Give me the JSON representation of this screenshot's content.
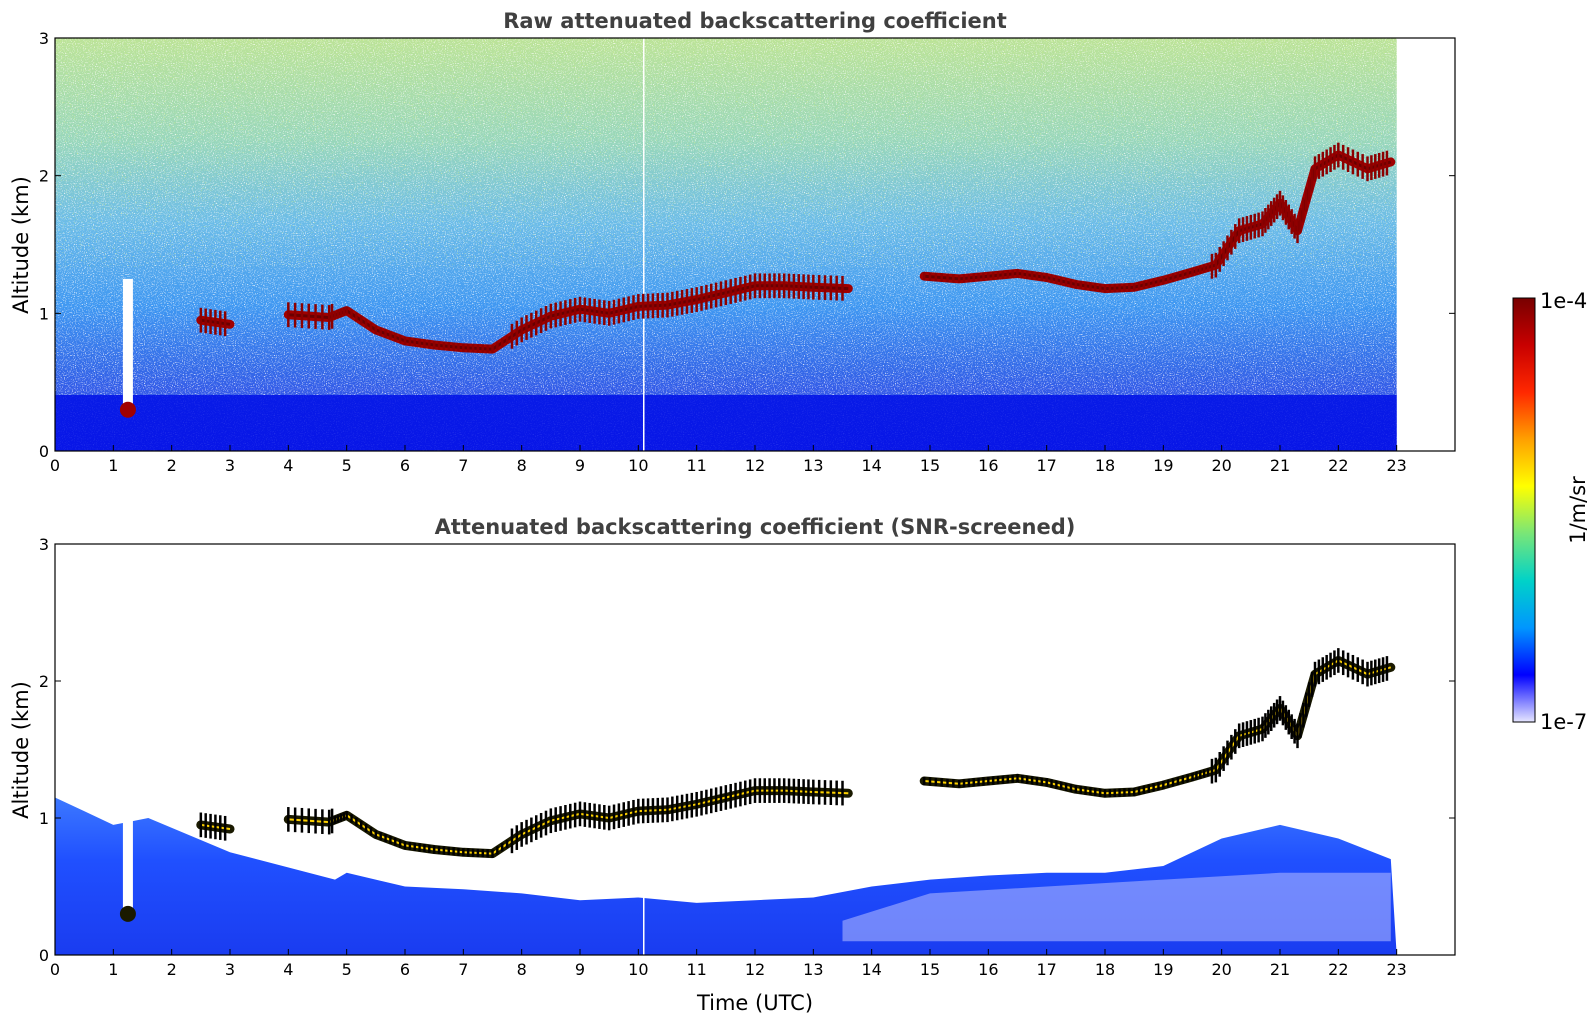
{
  "chart_data": [
    {
      "type": "heatmap",
      "title": "Raw attenuated backscattering coefficient",
      "xlabel": "",
      "ylabel": "Altitude (km)",
      "xlim": [
        0,
        24
      ],
      "ylim": [
        0,
        3
      ],
      "x_ticks": [
        "0",
        "1",
        "2",
        "3",
        "4",
        "5",
        "6",
        "7",
        "8",
        "9",
        "10",
        "11",
        "12",
        "13",
        "14",
        "15",
        "16",
        "17",
        "18",
        "19",
        "20",
        "21",
        "22",
        "23"
      ],
      "y_ticks": [
        "0",
        "1",
        "2",
        "3"
      ],
      "data_time_range": [
        0,
        23
      ],
      "cloud_base_layer": [
        [
          0.3,
          1.12
        ],
        [
          1.6,
          1.0
        ],
        [
          2.5,
          0.95
        ],
        [
          3.0,
          0.92
        ],
        [
          4.0,
          0.99
        ],
        [
          4.7,
          0.97
        ],
        [
          5.0,
          1.02
        ],
        [
          5.5,
          0.88
        ],
        [
          6.0,
          0.8
        ],
        [
          6.5,
          0.77
        ],
        [
          7.0,
          0.75
        ],
        [
          7.5,
          0.74
        ],
        [
          8.0,
          0.88
        ],
        [
          8.5,
          0.98
        ],
        [
          9.0,
          1.03
        ],
        [
          9.5,
          1.0
        ],
        [
          10.0,
          1.05
        ],
        [
          10.5,
          1.06
        ],
        [
          11.0,
          1.1
        ],
        [
          11.5,
          1.15
        ],
        [
          12.0,
          1.2
        ],
        [
          12.5,
          1.2
        ],
        [
          13.0,
          1.19
        ],
        [
          13.6,
          1.18
        ],
        [
          14.9,
          1.27
        ],
        [
          15.5,
          1.25
        ],
        [
          16.0,
          1.27
        ],
        [
          16.5,
          1.29
        ],
        [
          17.0,
          1.26
        ],
        [
          17.5,
          1.21
        ],
        [
          18.0,
          1.18
        ],
        [
          18.5,
          1.19
        ],
        [
          19.0,
          1.24
        ],
        [
          19.5,
          1.3
        ],
        [
          19.9,
          1.35
        ],
        [
          20.3,
          1.6
        ],
        [
          20.7,
          1.65
        ],
        [
          21.0,
          1.8
        ],
        [
          21.3,
          1.6
        ],
        [
          21.6,
          2.05
        ],
        [
          22.0,
          2.15
        ],
        [
          22.5,
          2.05
        ],
        [
          22.9,
          2.1
        ]
      ],
      "low_feature": {
        "x": 1.25,
        "y": 0.3
      }
    },
    {
      "type": "heatmap",
      "title": "Attenuated backscattering coefficient (SNR-screened)",
      "xlabel": "Time (UTC)",
      "ylabel": "Altitude (km)",
      "xlim": [
        0,
        24
      ],
      "ylim": [
        0,
        3
      ],
      "x_ticks": [
        "0",
        "1",
        "2",
        "3",
        "4",
        "5",
        "6",
        "7",
        "8",
        "9",
        "10",
        "11",
        "12",
        "13",
        "14",
        "15",
        "16",
        "17",
        "18",
        "19",
        "20",
        "21",
        "22",
        "23"
      ],
      "y_ticks": [
        "0",
        "1",
        "2",
        "3"
      ],
      "data_time_range": [
        0,
        23
      ]
    }
  ],
  "colorbar": {
    "max_label": "1e-4",
    "min_label": "1e-7",
    "unit_label": "1/m/sr",
    "stops": [
      "#e6e6ff",
      "#0000ff",
      "#0096ff",
      "#00d2c8",
      "#78e678",
      "#ffff00",
      "#ffa000",
      "#ff2800",
      "#c80000",
      "#780000"
    ]
  }
}
